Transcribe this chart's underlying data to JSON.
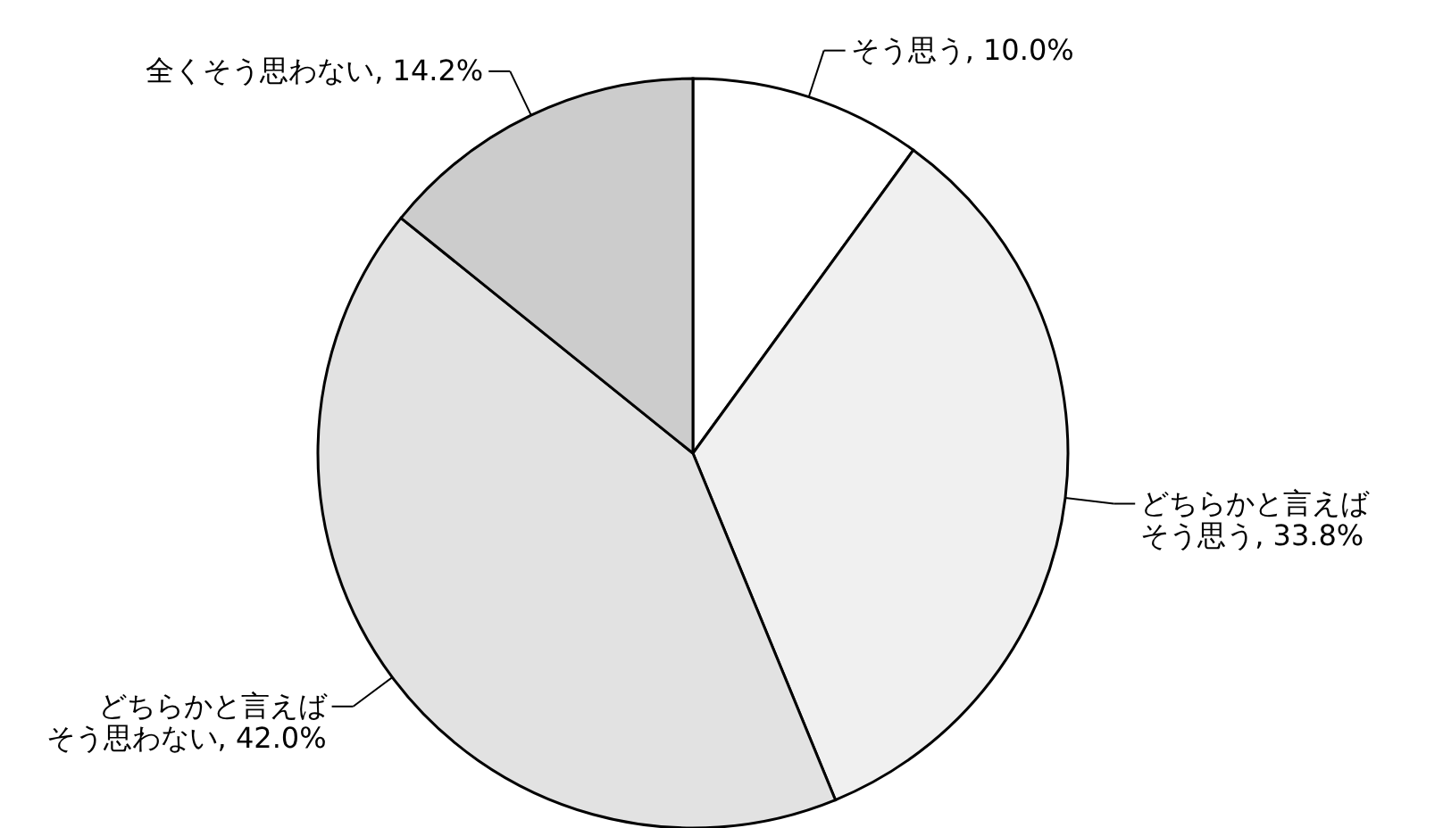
{
  "chart_data": {
    "type": "pie",
    "categories": [
      "そう思う",
      "どちらかと言えばそう思う",
      "どちらかと言えばそう思わない",
      "全くそう思わない"
    ],
    "value_labels": [
      "10.0%",
      "33.8%",
      "42.0%",
      "14.2%"
    ],
    "values": [
      10.0,
      33.8,
      42.0,
      14.2
    ],
    "colors": [
      "#ffffff",
      "#f0f0f0",
      "#e2e2e2",
      "#cccccc"
    ]
  }
}
